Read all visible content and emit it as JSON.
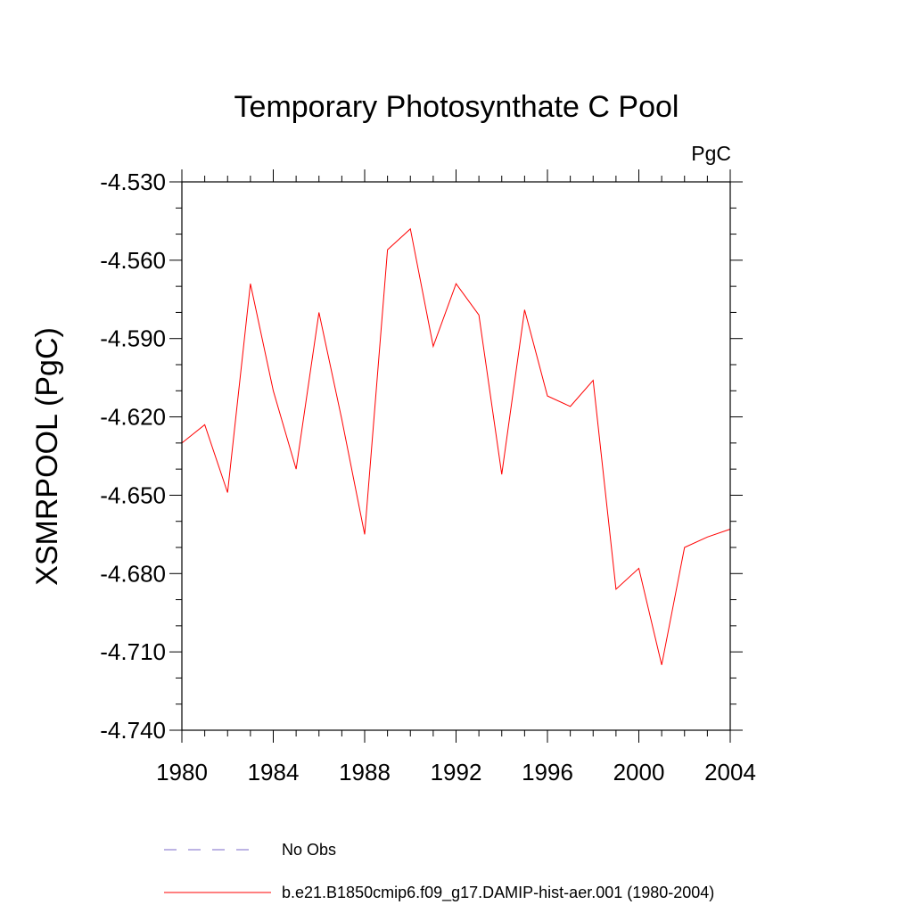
{
  "chart_data": {
    "type": "line",
    "title": "Temporary Photosynthate C Pool",
    "units_label": "PgC",
    "ylabel": "XSMRPOOL  (PgC)",
    "xlabel": "",
    "xlim": [
      1980,
      2004
    ],
    "ylim": [
      -4.74,
      -4.53
    ],
    "x_ticks": [
      1980,
      1984,
      1988,
      1992,
      1996,
      2000,
      2004
    ],
    "x_tick_labels": [
      "1980",
      "1984",
      "1988",
      "1992",
      "1996",
      "2000",
      "2004"
    ],
    "y_ticks": [
      -4.53,
      -4.56,
      -4.59,
      -4.62,
      -4.65,
      -4.68,
      -4.71,
      -4.74
    ],
    "y_tick_labels": [
      "-4.530",
      "-4.560",
      "-4.590",
      "-4.620",
      "-4.650",
      "-4.680",
      "-4.710",
      "-4.740"
    ],
    "grid": false,
    "series": [
      {
        "name": "b.e21.B1850cmip6.f09_g17.DAMIP-hist-aer.001 (1980-2004)",
        "color": "#ff0000",
        "style": "solid",
        "x": [
          1980,
          1981,
          1982,
          1983,
          1984,
          1985,
          1986,
          1987,
          1988,
          1989,
          1990,
          1991,
          1992,
          1993,
          1994,
          1995,
          1996,
          1997,
          1998,
          1999,
          2000,
          2001,
          2002,
          2003,
          2004
        ],
        "values": [
          -4.63,
          -4.623,
          -4.649,
          -4.569,
          -4.61,
          -4.64,
          -4.58,
          -4.621,
          -4.665,
          -4.556,
          -4.548,
          -4.593,
          -4.569,
          -4.581,
          -4.642,
          -4.579,
          -4.612,
          -4.616,
          -4.606,
          -4.686,
          -4.678,
          -4.715,
          -4.67,
          -4.666,
          -4.663
        ]
      }
    ],
    "legend": {
      "placement": "bottom",
      "entries": [
        {
          "label": "No Obs",
          "color": "#7b68c8",
          "style": "dashed"
        },
        {
          "label": "b.e21.B1850cmip6.f09_g17.DAMIP-hist-aer.001 (1980-2004)",
          "color": "#ff0000",
          "style": "solid"
        }
      ]
    }
  }
}
